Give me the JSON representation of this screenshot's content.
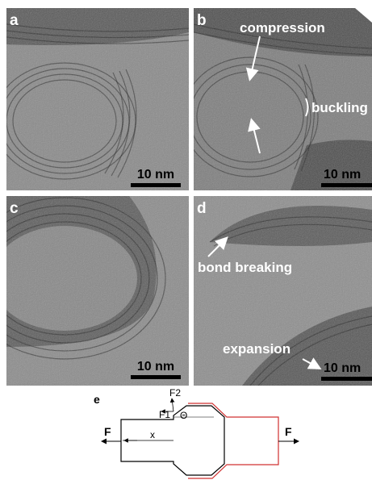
{
  "panels": [
    {
      "label": "a",
      "scale_bar": "10 nm"
    },
    {
      "label": "b",
      "scale_bar": "10 nm",
      "annotations": [
        "compression",
        "buckling"
      ]
    },
    {
      "label": "c",
      "scale_bar": "10 nm"
    },
    {
      "label": "d",
      "scale_bar": "10 nm",
      "annotations": [
        "bond breaking",
        "expansion"
      ]
    }
  ],
  "diagram": {
    "label": "e",
    "force_left": "F",
    "force_right": "F",
    "x": "x",
    "f1": "F1",
    "f2": "F2",
    "theta": "Θ"
  }
}
